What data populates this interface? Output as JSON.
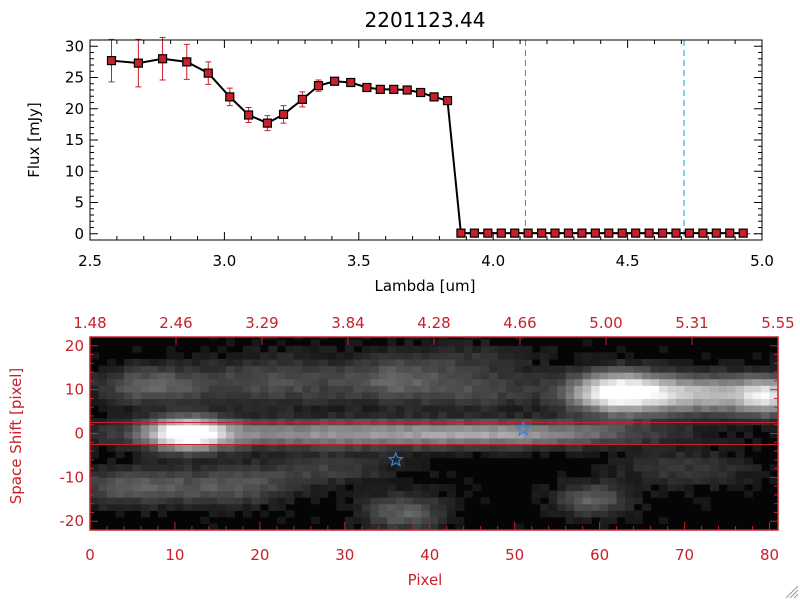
{
  "chart_data": [
    {
      "type": "line",
      "title": "2201123.44",
      "xlabel": "Lambda [um]",
      "ylabel": "Flux [mJy]",
      "xlim": [
        2.5,
        5.0
      ],
      "ylim": [
        -1,
        31
      ],
      "x_ticks": [
        "2.5",
        "3.0",
        "3.5",
        "4.0",
        "4.5",
        "5.0"
      ],
      "y_ticks": [
        "0",
        "5",
        "10",
        "15",
        "20",
        "25",
        "30"
      ],
      "x_tick_values": [
        2.5,
        3.0,
        3.5,
        4.0,
        4.5,
        5.0
      ],
      "y_tick_values": [
        0,
        5,
        10,
        15,
        20,
        25,
        30
      ],
      "line_color": "#000000",
      "marker_color": "#c8202a",
      "errorbar_color": "#c8202a",
      "dashed_vlines": [
        4.12,
        4.71
      ],
      "dashed_vline_color": "#1a9fd0",
      "series": [
        {
          "x": [
            2.58,
            2.68,
            2.77,
            2.86,
            2.94,
            3.02,
            3.09,
            3.16,
            3.22,
            3.29,
            3.35,
            3.41,
            3.47,
            3.53,
            3.58,
            3.63,
            3.68,
            3.73,
            3.78,
            3.83,
            3.88,
            3.93,
            3.98,
            4.03,
            4.08,
            4.13,
            4.18,
            4.23,
            4.28,
            4.33,
            4.38,
            4.43,
            4.48,
            4.53,
            4.58,
            4.63,
            4.68,
            4.73,
            4.78,
            4.83,
            4.88,
            4.93
          ],
          "y": [
            27.7,
            27.3,
            28.0,
            27.5,
            25.7,
            21.9,
            19.0,
            17.7,
            19.1,
            21.5,
            23.7,
            24.4,
            24.2,
            23.4,
            23.1,
            23.1,
            23.0,
            22.6,
            21.9,
            21.3,
            0.1,
            0.1,
            0.1,
            0.1,
            0.1,
            0.1,
            0.1,
            0.1,
            0.1,
            0.1,
            0.1,
            0.1,
            0.1,
            0.1,
            0.1,
            0.1,
            0.1,
            0.1,
            0.1,
            0.1,
            0.1,
            0.1
          ],
          "err": [
            3.4,
            3.8,
            3.4,
            2.8,
            1.8,
            1.4,
            1.2,
            1.2,
            1.4,
            1.2,
            0.9,
            0.6,
            0.5,
            0.5,
            0.5,
            0.5,
            0.5,
            0.6,
            0.6,
            0.6,
            0.1,
            0.1,
            0.1,
            0.1,
            0.1,
            0.1,
            0.1,
            0.1,
            0.1,
            0.1,
            0.1,
            0.1,
            0.1,
            0.1,
            0.1,
            0.1,
            0.1,
            0.1,
            0.1,
            0.1,
            0.1,
            0.1
          ]
        }
      ]
    },
    {
      "type": "heatmap",
      "xlabel": "Pixel",
      "ylabel": "Space Shift [pixel]",
      "xlim": [
        0,
        81
      ],
      "ylim": [
        -22,
        22
      ],
      "x_ticks": [
        "0",
        "10",
        "20",
        "30",
        "40",
        "50",
        "60",
        "70",
        "80"
      ],
      "x_tick_values": [
        0,
        10,
        20,
        30,
        40,
        50,
        60,
        70,
        80
      ],
      "y_ticks": [
        "20",
        "10",
        "0",
        "-10",
        "-20"
      ],
      "y_tick_values": [
        20,
        10,
        0,
        -10,
        -20
      ],
      "top_axis_ticks": [
        "1.48",
        "2.46",
        "3.29",
        "3.84",
        "4.28",
        "4.66",
        "5.00",
        "5.31",
        "5.55"
      ],
      "frame_color": "#c8202a",
      "extraction_lines_y": [
        2.5,
        -2.5
      ],
      "star_markers": [
        {
          "x": 36,
          "y": -6
        },
        {
          "x": 51,
          "y": 1
        }
      ],
      "star_color": "#3a7fd8",
      "blobs": [
        {
          "x": 11.5,
          "y": 0.0,
          "sx": 3.2,
          "sy": 2.6,
          "a": 1.0
        },
        {
          "x": 30,
          "y": 0.0,
          "sx": 18,
          "sy": 2.2,
          "a": 0.55
        },
        {
          "x": 52,
          "y": 0.0,
          "sx": 10,
          "sy": 2.0,
          "a": 0.32
        },
        {
          "x": 62,
          "y": 9.5,
          "sx": 4.0,
          "sy": 3.2,
          "a": 0.95
        },
        {
          "x": 72,
          "y": 9.0,
          "sx": 7.0,
          "sy": 3.0,
          "a": 0.7
        },
        {
          "x": 80,
          "y": 8.5,
          "sx": 2.5,
          "sy": 3.0,
          "a": 0.6
        },
        {
          "x": 7,
          "y": 11,
          "sx": 4.5,
          "sy": 3.0,
          "a": 0.35
        },
        {
          "x": 22,
          "y": 12,
          "sx": 7,
          "sy": 4,
          "a": 0.28
        },
        {
          "x": 36,
          "y": 12,
          "sx": 4,
          "sy": 3.5,
          "a": 0.3
        },
        {
          "x": 46,
          "y": 10,
          "sx": 5,
          "sy": 3,
          "a": 0.25
        },
        {
          "x": 5,
          "y": -12,
          "sx": 5,
          "sy": 3,
          "a": 0.33
        },
        {
          "x": 17,
          "y": -12,
          "sx": 5,
          "sy": 3,
          "a": 0.3
        },
        {
          "x": 37,
          "y": -18,
          "sx": 3.5,
          "sy": 3,
          "a": 0.35
        },
        {
          "x": 59,
          "y": -15,
          "sx": 3,
          "sy": 2.5,
          "a": 0.35
        },
        {
          "x": 28,
          "y": -8,
          "sx": 6,
          "sy": 2.5,
          "a": 0.2
        },
        {
          "x": 70,
          "y": -8,
          "sx": 6,
          "sy": 3,
          "a": 0.18
        },
        {
          "x": 44,
          "y": 17,
          "sx": 6,
          "sy": 3,
          "a": 0.15
        }
      ]
    }
  ]
}
